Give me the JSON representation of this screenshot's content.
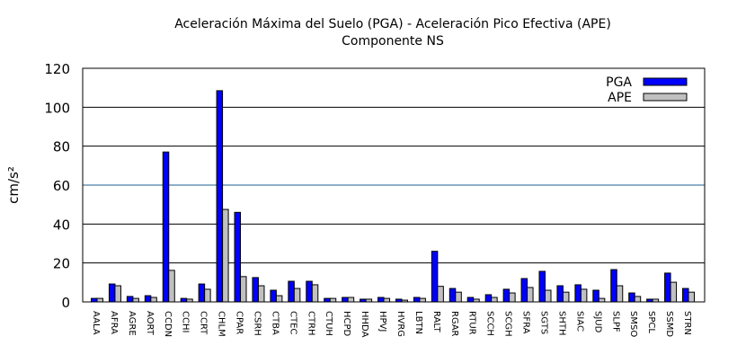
{
  "chart_data": {
    "type": "bar",
    "title": "Aceleración Máxima del Suelo (PGA) -  Aceleración Pico Efectiva (APE)",
    "subtitle": "Componente NS",
    "xlabel": "",
    "ylabel": "cm/s²",
    "ylim": [
      0,
      120
    ],
    "yticks": [
      0,
      20,
      40,
      60,
      80,
      100,
      120
    ],
    "grid": "horizontal",
    "legend": "top-right",
    "categories": [
      "AALA",
      "AFRA",
      "AGRE",
      "AORT",
      "CCDN",
      "CCHI",
      "CCRT",
      "CHLM",
      "CPAR",
      "CSRH",
      "CTBA",
      "CTEC",
      "CTRH",
      "CTUH",
      "HCPD",
      "HHDA",
      "HPVJ",
      "HVRG",
      "LBTN",
      "RALT",
      "RGAR",
      "RTUR",
      "SCCH",
      "SCGH",
      "SFRA",
      "SGTS",
      "SHTH",
      "SIAC",
      "SJUD",
      "SLPF",
      "SMSO",
      "SPCL",
      "SSMD",
      "STRN"
    ],
    "series": [
      {
        "name": "PGA",
        "color": "#0000ff",
        "values": [
          1.8,
          9.2,
          2.8,
          3.2,
          77,
          1.8,
          9.2,
          108.5,
          46,
          12.5,
          6,
          10.6,
          10.6,
          1.8,
          2.3,
          1.4,
          2.3,
          1.4,
          2.3,
          26,
          6.9,
          2.3,
          3.7,
          6.5,
          12,
          15.7,
          8.3,
          8.8,
          6,
          16.6,
          4.6,
          1.4,
          14.8,
          6.9
        ]
      },
      {
        "name": "APE",
        "color": "#c0c0c0",
        "values": [
          1.8,
          8.3,
          1.8,
          2.3,
          16.2,
          1.4,
          6.5,
          47.5,
          13,
          8.3,
          3.2,
          6.9,
          8.8,
          1.8,
          2.3,
          1.4,
          1.8,
          0.9,
          1.8,
          8,
          5,
          1.4,
          2.3,
          4.6,
          7.4,
          6,
          5,
          6.5,
          1.8,
          8.3,
          2.8,
          1.4,
          10.1,
          5
        ]
      }
    ]
  }
}
